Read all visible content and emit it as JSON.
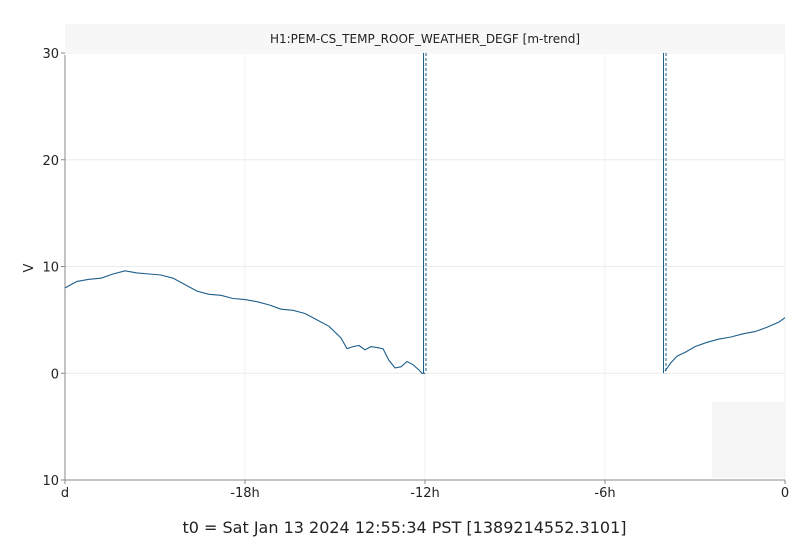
{
  "chart_data": {
    "type": "line",
    "title": "H1:PEM-CS_TEMP_ROOF_WEATHER_DEGF [m-trend]",
    "ylabel": "V",
    "xlabel": "",
    "ylim": [
      -10,
      30
    ],
    "xlim": [
      -24,
      0
    ],
    "x_unit": "h",
    "y_ticks": [
      {
        "value": 30,
        "label": "30"
      },
      {
        "value": 20,
        "label": "20"
      },
      {
        "value": 10,
        "label": "10"
      },
      {
        "value": 0,
        "label": "0"
      },
      {
        "value": -10,
        "label": "10"
      }
    ],
    "x_ticks": [
      {
        "value": -24,
        "label": "d"
      },
      {
        "value": -18,
        "label": "-18h"
      },
      {
        "value": -12,
        "label": "-12h"
      },
      {
        "value": -6,
        "label": "-6h"
      },
      {
        "value": 0,
        "label": "0"
      }
    ],
    "grid": true,
    "series": [
      {
        "color": "#1f5f8b",
        "x": [
          -24,
          -23.6,
          -23.2,
          -22.8,
          -22.4,
          -22.0,
          -21.6,
          -21.2,
          -20.8,
          -20.4,
          -20.0,
          -19.6,
          -19.2,
          -18.8,
          -18.4,
          -18.0,
          -17.6,
          -17.2,
          -16.8,
          -16.4,
          -16.0,
          -15.6,
          -15.2,
          -14.8,
          -14.6,
          -14.4,
          -14.2,
          -14.0,
          -13.8,
          -13.6,
          -13.4,
          -13.2,
          -13.0,
          -12.8,
          -12.6,
          -12.4,
          -12.2,
          -12.1,
          -12.0
        ],
        "y": [
          8.0,
          8.6,
          8.8,
          8.9,
          9.3,
          9.6,
          9.4,
          9.3,
          9.2,
          8.9,
          8.3,
          7.7,
          7.4,
          7.3,
          7.0,
          6.9,
          6.7,
          6.4,
          6.0,
          5.9,
          5.6,
          5.0,
          4.4,
          3.3,
          2.3,
          2.5,
          2.6,
          2.2,
          2.5,
          2.4,
          2.3,
          1.2,
          0.5,
          0.6,
          1.1,
          0.8,
          0.3,
          0.0,
          0.0
        ]
      },
      {
        "color": "#1f5f8b",
        "x": [
          -4.0,
          -3.8,
          -3.6,
          -3.3,
          -3.0,
          -2.6,
          -2.2,
          -1.8,
          -1.4,
          -1.0,
          -0.6,
          -0.2,
          0
        ],
        "y": [
          0.2,
          1.0,
          1.6,
          2.0,
          2.5,
          2.9,
          3.2,
          3.4,
          3.7,
          3.9,
          4.3,
          4.8,
          5.2
        ]
      }
    ],
    "vertical_marks": [
      -12.0,
      -4.0
    ]
  },
  "footer_text": "t0 = Sat Jan 13 2024 12:55:34 PST [1389214552.3101]"
}
